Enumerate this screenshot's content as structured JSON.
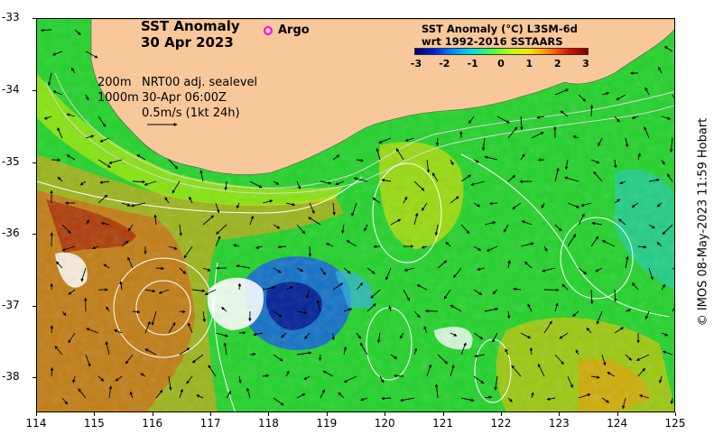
{
  "title": {
    "line1": "SST Anomaly",
    "line2": "30 Apr 2023"
  },
  "argo": {
    "label": "Argo",
    "marker_color": "#ff00ff"
  },
  "legend": {
    "line1": "SST Anomaly (°C) L3SM-6d",
    "line2": "wrt 1992-2016 SSTAARS",
    "ticks": [
      "-3",
      "-2",
      "-1",
      "0",
      "1",
      "2",
      "3"
    ]
  },
  "info": {
    "depth1": "200m",
    "depth2": "1000m",
    "product": "NRT00 adj. sealevel",
    "time": "30-Apr 06:00Z",
    "scale": "0.5m/s (1kt 24h)"
  },
  "axes": {
    "y_ticks": [
      "-33",
      "-34",
      "-35",
      "-36",
      "-37",
      "-38"
    ],
    "x_ticks": [
      "114",
      "115",
      "116",
      "117",
      "118",
      "119",
      "120",
      "121",
      "122",
      "123",
      "124",
      "125"
    ]
  },
  "credit": "© IMOS 08-May-2023 11:59 Hobart",
  "colors": {
    "land": "#f9c89a",
    "ocean_base": "#1fd62a"
  }
}
